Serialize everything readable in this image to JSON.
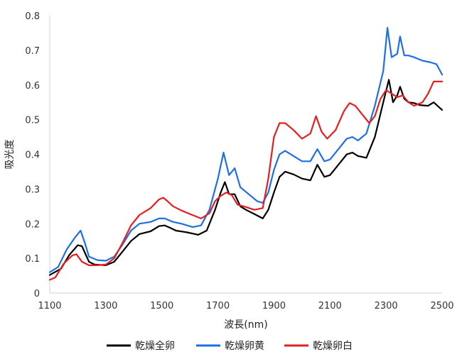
{
  "chart_data": {
    "type": "line",
    "title": "",
    "xlabel": "波長(nm)",
    "ylabel": "吸光度",
    "xlim": [
      1100,
      2500
    ],
    "ylim": [
      0,
      0.8
    ],
    "xticks": [
      "1100",
      "1300",
      "1500",
      "1700",
      "1900",
      "2100",
      "2300",
      "2500"
    ],
    "yticks": [
      "0",
      "0.1",
      "0.2",
      "0.3",
      "0.4",
      "0.5",
      "0.6",
      "0.7",
      "0.8"
    ],
    "grid": false,
    "legend": "bottom",
    "series": [
      {
        "name": "乾燥全卵",
        "color": "#000000",
        "points": [
          [
            1100,
            0.052
          ],
          [
            1140,
            0.07
          ],
          [
            1170,
            0.11
          ],
          [
            1200,
            0.138
          ],
          [
            1215,
            0.135
          ],
          [
            1240,
            0.09
          ],
          [
            1260,
            0.082
          ],
          [
            1300,
            0.08
          ],
          [
            1330,
            0.09
          ],
          [
            1360,
            0.12
          ],
          [
            1390,
            0.15
          ],
          [
            1420,
            0.17
          ],
          [
            1460,
            0.178
          ],
          [
            1490,
            0.193
          ],
          [
            1510,
            0.195
          ],
          [
            1530,
            0.188
          ],
          [
            1550,
            0.18
          ],
          [
            1590,
            0.175
          ],
          [
            1630,
            0.168
          ],
          [
            1660,
            0.18
          ],
          [
            1690,
            0.24
          ],
          [
            1710,
            0.29
          ],
          [
            1725,
            0.32
          ],
          [
            1740,
            0.285
          ],
          [
            1760,
            0.285
          ],
          [
            1780,
            0.25
          ],
          [
            1800,
            0.24
          ],
          [
            1830,
            0.228
          ],
          [
            1860,
            0.215
          ],
          [
            1880,
            0.24
          ],
          [
            1900,
            0.29
          ],
          [
            1920,
            0.335
          ],
          [
            1940,
            0.35
          ],
          [
            1970,
            0.342
          ],
          [
            2000,
            0.33
          ],
          [
            2030,
            0.325
          ],
          [
            2055,
            0.37
          ],
          [
            2080,
            0.335
          ],
          [
            2100,
            0.34
          ],
          [
            2130,
            0.37
          ],
          [
            2160,
            0.4
          ],
          [
            2180,
            0.405
          ],
          [
            2200,
            0.395
          ],
          [
            2230,
            0.39
          ],
          [
            2260,
            0.45
          ],
          [
            2290,
            0.55
          ],
          [
            2310,
            0.615
          ],
          [
            2325,
            0.55
          ],
          [
            2340,
            0.57
          ],
          [
            2350,
            0.595
          ],
          [
            2365,
            0.56
          ],
          [
            2380,
            0.55
          ],
          [
            2400,
            0.548
          ],
          [
            2420,
            0.542
          ],
          [
            2450,
            0.54
          ],
          [
            2470,
            0.55
          ],
          [
            2490,
            0.535
          ],
          [
            2500,
            0.528
          ]
        ]
      },
      {
        "name": "乾燥卵黄",
        "color": "#1e6fe6",
        "points": [
          [
            1100,
            0.06
          ],
          [
            1130,
            0.075
          ],
          [
            1160,
            0.125
          ],
          [
            1190,
            0.16
          ],
          [
            1210,
            0.18
          ],
          [
            1225,
            0.145
          ],
          [
            1240,
            0.105
          ],
          [
            1270,
            0.095
          ],
          [
            1300,
            0.093
          ],
          [
            1330,
            0.105
          ],
          [
            1360,
            0.14
          ],
          [
            1390,
            0.18
          ],
          [
            1420,
            0.2
          ],
          [
            1460,
            0.205
          ],
          [
            1490,
            0.215
          ],
          [
            1510,
            0.215
          ],
          [
            1540,
            0.205
          ],
          [
            1570,
            0.2
          ],
          [
            1610,
            0.19
          ],
          [
            1640,
            0.195
          ],
          [
            1670,
            0.24
          ],
          [
            1700,
            0.33
          ],
          [
            1720,
            0.405
          ],
          [
            1740,
            0.34
          ],
          [
            1760,
            0.36
          ],
          [
            1780,
            0.305
          ],
          [
            1810,
            0.285
          ],
          [
            1840,
            0.265
          ],
          [
            1860,
            0.26
          ],
          [
            1880,
            0.29
          ],
          [
            1900,
            0.355
          ],
          [
            1920,
            0.4
          ],
          [
            1940,
            0.41
          ],
          [
            1970,
            0.395
          ],
          [
            2000,
            0.38
          ],
          [
            2030,
            0.38
          ],
          [
            2055,
            0.415
          ],
          [
            2080,
            0.38
          ],
          [
            2100,
            0.385
          ],
          [
            2130,
            0.415
          ],
          [
            2160,
            0.445
          ],
          [
            2180,
            0.45
          ],
          [
            2200,
            0.44
          ],
          [
            2230,
            0.46
          ],
          [
            2260,
            0.54
          ],
          [
            2290,
            0.64
          ],
          [
            2305,
            0.765
          ],
          [
            2320,
            0.68
          ],
          [
            2340,
            0.69
          ],
          [
            2350,
            0.74
          ],
          [
            2365,
            0.685
          ],
          [
            2380,
            0.685
          ],
          [
            2400,
            0.68
          ],
          [
            2430,
            0.67
          ],
          [
            2460,
            0.665
          ],
          [
            2480,
            0.66
          ],
          [
            2500,
            0.63
          ]
        ]
      },
      {
        "name": "乾燥卵白",
        "color": "#e61e1e",
        "points": [
          [
            1100,
            0.038
          ],
          [
            1120,
            0.045
          ],
          [
            1150,
            0.085
          ],
          [
            1180,
            0.108
          ],
          [
            1195,
            0.112
          ],
          [
            1215,
            0.09
          ],
          [
            1240,
            0.08
          ],
          [
            1270,
            0.08
          ],
          [
            1300,
            0.082
          ],
          [
            1330,
            0.1
          ],
          [
            1360,
            0.145
          ],
          [
            1390,
            0.195
          ],
          [
            1420,
            0.225
          ],
          [
            1460,
            0.245
          ],
          [
            1490,
            0.27
          ],
          [
            1505,
            0.275
          ],
          [
            1520,
            0.265
          ],
          [
            1540,
            0.25
          ],
          [
            1570,
            0.238
          ],
          [
            1600,
            0.228
          ],
          [
            1640,
            0.215
          ],
          [
            1670,
            0.23
          ],
          [
            1690,
            0.265
          ],
          [
            1710,
            0.28
          ],
          [
            1730,
            0.29
          ],
          [
            1750,
            0.282
          ],
          [
            1770,
            0.255
          ],
          [
            1800,
            0.248
          ],
          [
            1830,
            0.24
          ],
          [
            1860,
            0.245
          ],
          [
            1880,
            0.33
          ],
          [
            1900,
            0.45
          ],
          [
            1920,
            0.49
          ],
          [
            1940,
            0.49
          ],
          [
            1970,
            0.47
          ],
          [
            2000,
            0.445
          ],
          [
            2030,
            0.46
          ],
          [
            2050,
            0.51
          ],
          [
            2070,
            0.465
          ],
          [
            2090,
            0.445
          ],
          [
            2120,
            0.47
          ],
          [
            2150,
            0.525
          ],
          [
            2170,
            0.548
          ],
          [
            2190,
            0.54
          ],
          [
            2220,
            0.51
          ],
          [
            2240,
            0.49
          ],
          [
            2260,
            0.51
          ],
          [
            2280,
            0.56
          ],
          [
            2300,
            0.585
          ],
          [
            2320,
            0.575
          ],
          [
            2340,
            0.565
          ],
          [
            2360,
            0.57
          ],
          [
            2380,
            0.55
          ],
          [
            2400,
            0.54
          ],
          [
            2430,
            0.55
          ],
          [
            2450,
            0.575
          ],
          [
            2470,
            0.61
          ],
          [
            2490,
            0.61
          ],
          [
            2500,
            0.61
          ]
        ]
      }
    ]
  }
}
